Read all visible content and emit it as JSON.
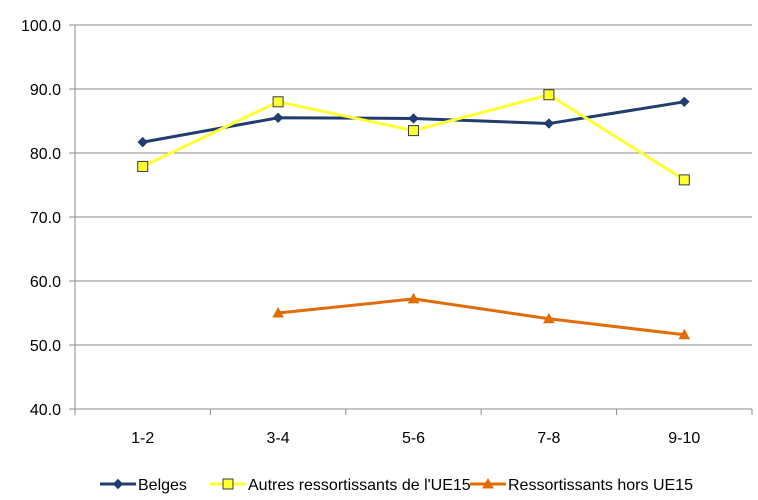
{
  "chart_data": {
    "type": "line",
    "categories": [
      "1-2",
      "3-4",
      "5-6",
      "7-8",
      "9-10"
    ],
    "ylim": [
      40,
      100
    ],
    "yticks": [
      "40.0",
      "50.0",
      "60.0",
      "70.0",
      "80.0",
      "90.0",
      "100.0"
    ],
    "grid": true,
    "legend_position": "bottom",
    "series": [
      {
        "name": "Belges",
        "values": [
          81.7,
          85.5,
          85.4,
          84.6,
          88.0
        ],
        "color": "#1f3d6e",
        "marker": "diamond"
      },
      {
        "name": "Autres ressortissants de l'UE15",
        "values": [
          77.9,
          88.0,
          83.5,
          89.1,
          75.8
        ],
        "color": "#ffff33",
        "marker": "square"
      },
      {
        "name": "Ressortissants hors UE15",
        "values": [
          null,
          55.0,
          57.2,
          54.1,
          51.6
        ],
        "color": "#e36c0a",
        "marker": "triangle"
      }
    ]
  }
}
